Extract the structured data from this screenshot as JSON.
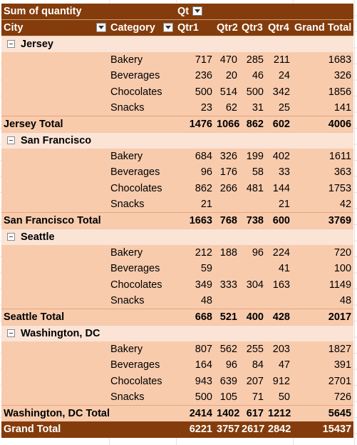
{
  "pivot": {
    "value_field": "Sum of quantity",
    "column_field": "Qt",
    "row_headers": {
      "city": "City",
      "category": "Category"
    },
    "quarters": [
      "Qtr1",
      "Qtr2",
      "Qtr3",
      "Qtr4"
    ],
    "grand_total_label": "Grand Total",
    "groups": [
      {
        "city": "Jersey",
        "rows": [
          {
            "category": "Bakery",
            "q1": "717",
            "q2": "470",
            "q3": "285",
            "q4": "211",
            "total": "1683"
          },
          {
            "category": "Beverages",
            "q1": "236",
            "q2": "20",
            "q3": "46",
            "q4": "24",
            "total": "326"
          },
          {
            "category": "Chocolates",
            "q1": "500",
            "q2": "514",
            "q3": "500",
            "q4": "342",
            "total": "1856"
          },
          {
            "category": "Snacks",
            "q1": "23",
            "q2": "62",
            "q3": "31",
            "q4": "25",
            "total": "141"
          }
        ],
        "subtotal": {
          "label": "Jersey Total",
          "q1": "1476",
          "q2": "1066",
          "q3": "862",
          "q4": "602",
          "total": "4006"
        }
      },
      {
        "city": "San Francisco",
        "rows": [
          {
            "category": "Bakery",
            "q1": "684",
            "q2": "326",
            "q3": "199",
            "q4": "402",
            "total": "1611"
          },
          {
            "category": "Beverages",
            "q1": "96",
            "q2": "176",
            "q3": "58",
            "q4": "33",
            "total": "363"
          },
          {
            "category": "Chocolates",
            "q1": "862",
            "q2": "266",
            "q3": "481",
            "q4": "144",
            "total": "1753"
          },
          {
            "category": "Snacks",
            "q1": "21",
            "q2": "",
            "q3": "",
            "q4": "21",
            "total": "42"
          }
        ],
        "subtotal": {
          "label": "San Francisco Total",
          "q1": "1663",
          "q2": "768",
          "q3": "738",
          "q4": "600",
          "total": "3769"
        }
      },
      {
        "city": "Seattle",
        "rows": [
          {
            "category": "Bakery",
            "q1": "212",
            "q2": "188",
            "q3": "96",
            "q4": "224",
            "total": "720"
          },
          {
            "category": "Beverages",
            "q1": "59",
            "q2": "",
            "q3": "",
            "q4": "41",
            "total": "100"
          },
          {
            "category": "Chocolates",
            "q1": "349",
            "q2": "333",
            "q3": "304",
            "q4": "163",
            "total": "1149"
          },
          {
            "category": "Snacks",
            "q1": "48",
            "q2": "",
            "q3": "",
            "q4": "",
            "total": "48"
          }
        ],
        "subtotal": {
          "label": "Seattle Total",
          "q1": "668",
          "q2": "521",
          "q3": "400",
          "q4": "428",
          "total": "2017"
        }
      },
      {
        "city": "Washington, DC",
        "rows": [
          {
            "category": "Bakery",
            "q1": "807",
            "q2": "562",
            "q3": "255",
            "q4": "203",
            "total": "1827"
          },
          {
            "category": "Beverages",
            "q1": "164",
            "q2": "96",
            "q3": "84",
            "q4": "47",
            "total": "391"
          },
          {
            "category": "Chocolates",
            "q1": "943",
            "q2": "639",
            "q3": "207",
            "q4": "912",
            "total": "2701"
          },
          {
            "category": "Snacks",
            "q1": "500",
            "q2": "105",
            "q3": "71",
            "q4": "50",
            "total": "726"
          }
        ],
        "subtotal": {
          "label": "Washington, DC Total",
          "q1": "2414",
          "q2": "1402",
          "q3": "617",
          "q4": "1212",
          "total": "5645"
        }
      }
    ],
    "grand_total": {
      "label": "Grand Total",
      "q1": "6221",
      "q2": "3757",
      "q3": "2617",
      "q4": "2842",
      "total": "15437"
    }
  },
  "icons": {
    "filter": "filter-dropdown-icon",
    "collapse": "collapse-minus-icon"
  },
  "colors": {
    "header_bg": "#843c0c",
    "row_bg": "#f8cbad",
    "city_row_bg": "#fbe4d6",
    "header_text": "#ffffff"
  }
}
